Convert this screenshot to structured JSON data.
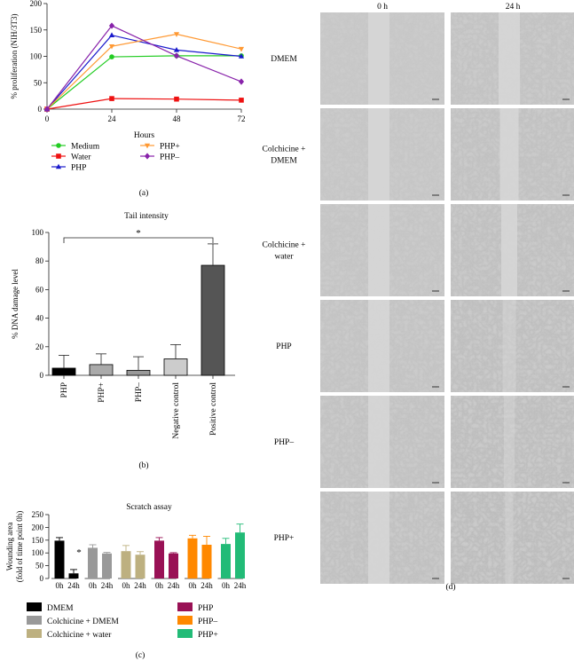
{
  "chart_data": [
    {
      "id": "a",
      "type": "line",
      "panel_label": "(a)",
      "xlabel": "Hours",
      "ylabel": "% proliferation (NIH/3T3)",
      "x": [
        0,
        24,
        48,
        72
      ],
      "xticks": [
        "0",
        "24",
        "48",
        "72"
      ],
      "yticks": [
        "0",
        "50",
        "100",
        "150",
        "200"
      ],
      "ylim": [
        0,
        200
      ],
      "xlim": [
        0,
        72
      ],
      "series": [
        {
          "name": "Medium",
          "color": "#22cc22",
          "marker": "circle",
          "values": [
            0,
            99,
            101,
            101
          ]
        },
        {
          "name": "Water",
          "color": "#ee1111",
          "marker": "square",
          "values": [
            0,
            20,
            19,
            17
          ]
        },
        {
          "name": "PHP",
          "color": "#1a1acc",
          "marker": "triangle",
          "values": [
            0,
            140,
            112,
            100
          ]
        },
        {
          "name": "PHP+",
          "color": "#ff9933",
          "marker": "triangle-down",
          "values": [
            0,
            119,
            142,
            114
          ]
        },
        {
          "name": "PHP–",
          "color": "#8822aa",
          "marker": "diamond",
          "values": [
            0,
            158,
            101,
            52
          ]
        }
      ],
      "legend_order": [
        [
          "Medium",
          "PHP+"
        ],
        [
          "Water",
          "PHP–"
        ],
        [
          "PHP"
        ]
      ]
    },
    {
      "id": "b",
      "type": "bar",
      "title": "Tail intensity",
      "panel_label": "(b)",
      "ylabel": "% DNA damage level",
      "ylim": [
        0,
        100
      ],
      "yticks": [
        "0",
        "20",
        "40",
        "60",
        "80",
        "100"
      ],
      "categories": [
        "PHP",
        "PHP+",
        "PHP–",
        "Negative control",
        "Positive control"
      ],
      "values": [
        5,
        7.5,
        3.5,
        11.5,
        77
      ],
      "errors": [
        9,
        7.5,
        9.5,
        10,
        15
      ],
      "colors": [
        "#000000",
        "#aaaaaa",
        "#999999",
        "#cccccc",
        "#555555"
      ],
      "annotation": "*"
    },
    {
      "id": "c",
      "type": "bar",
      "title": "Scratch assay",
      "panel_label": "(c)",
      "ylabel_lines": [
        "Wounding area",
        "(fold of time point 0h)"
      ],
      "ylim": [
        0,
        250
      ],
      "yticks": [
        "0",
        "50",
        "100",
        "150",
        "200",
        "250"
      ],
      "tick_labels": [
        "0h",
        "24h"
      ],
      "groups": [
        {
          "name": "DMEM",
          "color": "#000000",
          "values": [
            148,
            20
          ],
          "errors": [
            12,
            15
          ]
        },
        {
          "name": "Colchicine + DMEM",
          "color": "#999999",
          "values": [
            120,
            98
          ],
          "errors": [
            12,
            4
          ]
        },
        {
          "name": "Colchicine + water",
          "color": "#bdb080",
          "values": [
            107,
            93
          ],
          "errors": [
            22,
            12
          ]
        },
        {
          "name": "PHP",
          "color": "#991155",
          "values": [
            148,
            98
          ],
          "errors": [
            12,
            3
          ]
        },
        {
          "name": "PHP–",
          "color": "#ff8800",
          "values": [
            157,
            132
          ],
          "errors": [
            12,
            33
          ]
        },
        {
          "name": "PHP+",
          "color": "#22bb77",
          "values": [
            135,
            180
          ],
          "errors": [
            22,
            33
          ]
        }
      ],
      "annotation": "*"
    }
  ],
  "panel_d": {
    "panel_label": "(d)",
    "columns": [
      "0 h",
      "24 h"
    ],
    "rows": [
      "DMEM",
      "Colchicine + DMEM",
      "Colchicine + water",
      "PHP",
      "PHP–",
      "PHP+"
    ],
    "row_lines": [
      [
        "DMEM"
      ],
      [
        "Colchicine +",
        "DMEM"
      ],
      [
        "Colchicine +",
        "water"
      ],
      [
        "PHP"
      ],
      [
        "PHP–"
      ],
      [
        "PHP+"
      ]
    ]
  }
}
